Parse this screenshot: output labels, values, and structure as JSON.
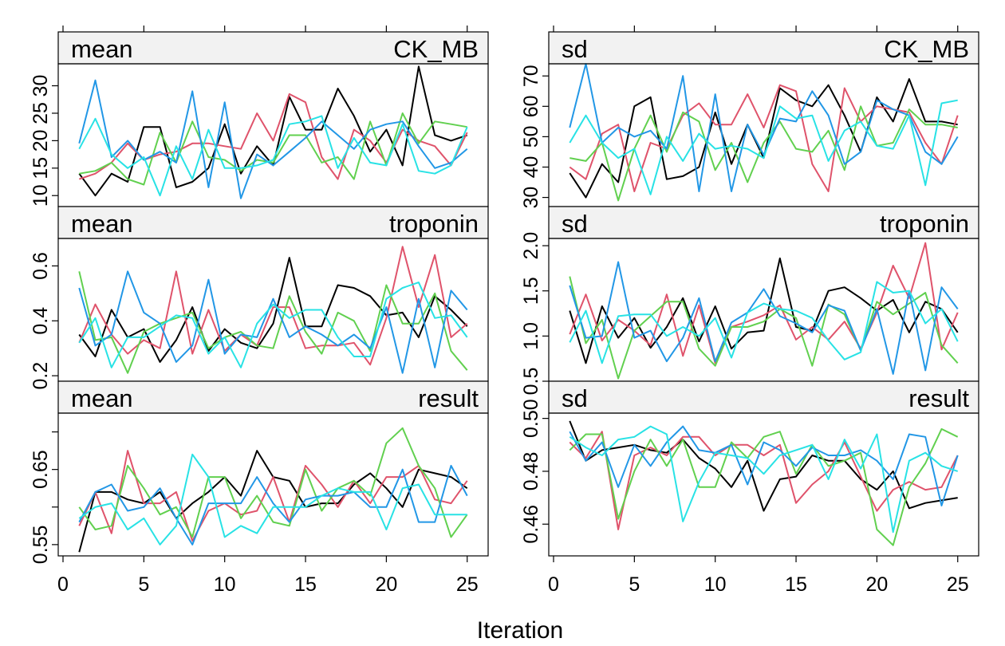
{
  "chart_data": {
    "type": "line",
    "xlabel": "Iteration",
    "x_ticks": [
      0,
      5,
      10,
      15,
      20,
      25
    ],
    "colors": [
      "#000000",
      "#DF536B",
      "#61D04F",
      "#2297E6",
      "#28E2E5"
    ],
    "panels": [
      {
        "stat": "mean",
        "variable": "CK_MB",
        "ylim": [
          8,
          34
        ],
        "y_ticks": [
          10,
          15,
          20,
          25,
          30
        ],
        "y_tick_labels": [
          "10",
          "15",
          "20",
          "25",
          "30"
        ],
        "series": [
          [
            14,
            10,
            14,
            12.5,
            22.5,
            22.5,
            11.5,
            12.5,
            15,
            23,
            14,
            19,
            15.5,
            28,
            22,
            22,
            29.5,
            24.5,
            18,
            22,
            15.5,
            33.5,
            21,
            20,
            21
          ],
          [
            13,
            14,
            16,
            19.5,
            16.5,
            17.5,
            18,
            19.5,
            19.5,
            19,
            18.5,
            25,
            20,
            28.5,
            27,
            17,
            13,
            22,
            20,
            16,
            22,
            20,
            19,
            15.5,
            21.5
          ],
          [
            14,
            14.5,
            16,
            13,
            12,
            21.5,
            16,
            23.5,
            17,
            16.5,
            14.5,
            16.5,
            16,
            21,
            21,
            16,
            17,
            13,
            23.5,
            15.5,
            25,
            19.5,
            23.5,
            23,
            22.5
          ],
          [
            19.5,
            31,
            17,
            20,
            16.5,
            18,
            16,
            29,
            11.5,
            27,
            9.5,
            17.5,
            15.5,
            18,
            20.5,
            23.5,
            21,
            18.5,
            22,
            23,
            23.5,
            19,
            15,
            16,
            18.5
          ],
          [
            18.5,
            24,
            17.5,
            15,
            17,
            10,
            19,
            13,
            22,
            15,
            15,
            15.5,
            16.5,
            23,
            23.5,
            24.5,
            15,
            20.5,
            16,
            15.5,
            23,
            14.5,
            14,
            15.5,
            22.5
          ]
        ]
      },
      {
        "stat": "sd",
        "variable": "CK_MB",
        "ylim": [
          27,
          74
        ],
        "y_ticks": [
          30,
          40,
          50,
          60,
          70
        ],
        "y_tick_labels": [
          "30",
          "40",
          "50",
          "60",
          "70"
        ],
        "series": [
          [
            38,
            30,
            41,
            35,
            60,
            63,
            36,
            37,
            40,
            58,
            41,
            54,
            43,
            66,
            62,
            60,
            67,
            57,
            45,
            63,
            55,
            69,
            55,
            55,
            54
          ],
          [
            40,
            36,
            51,
            54,
            32,
            48,
            46,
            57,
            61,
            54,
            54,
            64,
            53,
            67,
            65,
            41,
            32,
            66,
            55,
            60,
            59,
            58,
            48,
            41,
            57
          ],
          [
            43,
            42,
            48,
            29,
            46,
            57,
            45,
            58,
            55,
            39,
            48,
            35,
            48,
            55,
            46,
            45,
            52,
            39,
            60,
            47,
            48,
            59,
            54,
            54,
            53
          ],
          [
            53,
            74,
            48,
            53,
            50,
            52,
            46,
            70,
            32,
            64,
            32,
            54,
            44,
            56,
            55,
            65,
            57,
            41,
            45,
            62,
            59,
            57,
            45,
            41,
            50
          ],
          [
            48,
            57,
            48,
            43,
            46,
            31,
            50,
            42,
            51,
            46,
            47,
            46,
            43,
            60,
            56,
            57,
            42,
            52,
            55,
            47,
            46,
            57,
            34,
            61,
            62
          ]
        ]
      },
      {
        "stat": "mean",
        "variable": "troponin",
        "ylim": [
          0.18,
          0.7
        ],
        "y_ticks": [
          0.2,
          0.4,
          0.6
        ],
        "y_tick_labels": [
          "0.2",
          "0.4",
          "0.6"
        ],
        "series": [
          [
            0.35,
            0.27,
            0.44,
            0.34,
            0.37,
            0.25,
            0.33,
            0.45,
            0.29,
            0.37,
            0.32,
            0.3,
            0.39,
            0.63,
            0.38,
            0.38,
            0.53,
            0.52,
            0.49,
            0.42,
            0.43,
            0.34,
            0.49,
            0.44,
            0.38
          ],
          [
            0.32,
            0.46,
            0.35,
            0.28,
            0.33,
            0.3,
            0.58,
            0.28,
            0.44,
            0.29,
            0.35,
            0.31,
            0.45,
            0.45,
            0.3,
            0.31,
            0.31,
            0.32,
            0.24,
            0.41,
            0.67,
            0.45,
            0.64,
            0.34,
            0.39
          ],
          [
            0.58,
            0.33,
            0.34,
            0.21,
            0.36,
            0.39,
            0.41,
            0.43,
            0.3,
            0.34,
            0.36,
            0.31,
            0.3,
            0.49,
            0.36,
            0.28,
            0.43,
            0.4,
            0.29,
            0.53,
            0.39,
            0.39,
            0.5,
            0.29,
            0.22
          ],
          [
            0.52,
            0.31,
            0.35,
            0.58,
            0.43,
            0.39,
            0.25,
            0.31,
            0.55,
            0.28,
            0.35,
            0.34,
            0.48,
            0.34,
            0.38,
            0.35,
            0.31,
            0.35,
            0.3,
            0.45,
            0.21,
            0.48,
            0.23,
            0.51,
            0.44
          ],
          [
            0.32,
            0.41,
            0.23,
            0.34,
            0.34,
            0.38,
            0.42,
            0.41,
            0.28,
            0.34,
            0.23,
            0.39,
            0.46,
            0.41,
            0.44,
            0.44,
            0.34,
            0.27,
            0.27,
            0.48,
            0.52,
            0.54,
            0.41,
            0.42,
            0.34
          ]
        ]
      },
      {
        "stat": "sd",
        "variable": "troponin",
        "ylim": [
          0.5,
          2.08
        ],
        "y_ticks": [
          0.5,
          1.0,
          1.5,
          2.0
        ],
        "y_tick_labels": [
          "0.5",
          "1.0",
          "1.5",
          "2.0"
        ],
        "series": [
          [
            1.28,
            0.7,
            1.33,
            0.98,
            1.2,
            0.87,
            1.1,
            1.42,
            0.94,
            1.33,
            0.86,
            1.04,
            1.06,
            1.86,
            1.1,
            1.06,
            1.5,
            1.54,
            1.42,
            1.28,
            1.4,
            1.04,
            1.38,
            1.3,
            1.04
          ],
          [
            1.02,
            1.46,
            0.95,
            1.18,
            1.06,
            0.9,
            1.46,
            0.78,
            1.34,
            0.7,
            1.1,
            1.16,
            1.23,
            1.34,
            0.96,
            1.1,
            0.96,
            1.16,
            0.86,
            1.26,
            1.78,
            1.42,
            2.03,
            0.85,
            1.26
          ],
          [
            1.66,
            0.92,
            1.18,
            0.53,
            1.06,
            1.22,
            1.38,
            1.38,
            0.86,
            0.67,
            1.1,
            1.1,
            1.16,
            1.3,
            1.2,
            0.67,
            1.35,
            1.24,
            0.84,
            1.38,
            1.24,
            1.36,
            1.48,
            0.9,
            0.7
          ],
          [
            1.56,
            0.98,
            1.0,
            1.82,
            0.98,
            1.06,
            0.72,
            0.98,
            1.42,
            0.72,
            1.15,
            1.26,
            1.52,
            1.22,
            1.14,
            1.04,
            1.34,
            1.28,
            0.84,
            1.3,
            0.58,
            1.5,
            0.62,
            1.54,
            1.3
          ],
          [
            0.93,
            1.28,
            0.7,
            1.22,
            1.24,
            1.24,
            1.0,
            1.1,
            1.0,
            1.2,
            0.76,
            1.26,
            1.36,
            1.3,
            1.28,
            1.2,
            0.95,
            0.74,
            0.82,
            1.6,
            1.48,
            1.5,
            1.14,
            1.3,
            0.94
          ]
        ]
      },
      {
        "stat": "mean",
        "variable": "result",
        "ylim": [
          0.535,
          0.725
        ],
        "y_ticks": [
          0.55,
          0.6,
          0.65,
          0.7
        ],
        "y_tick_labels": [
          "0.55",
          "",
          "0.65",
          ""
        ],
        "series": [
          [
            0.54,
            0.62,
            0.62,
            0.61,
            0.605,
            0.62,
            0.585,
            0.605,
            0.62,
            0.64,
            0.615,
            0.675,
            0.64,
            0.635,
            0.6,
            0.605,
            0.605,
            0.63,
            0.645,
            0.625,
            0.6,
            0.65,
            0.645,
            0.64,
            0.625
          ],
          [
            0.575,
            0.62,
            0.565,
            0.675,
            0.605,
            0.605,
            0.62,
            0.555,
            0.595,
            0.605,
            0.59,
            0.595,
            0.64,
            0.58,
            0.655,
            0.63,
            0.6,
            0.635,
            0.605,
            0.64,
            0.64,
            0.655,
            0.61,
            0.605,
            0.635
          ],
          [
            0.6,
            0.57,
            0.575,
            0.655,
            0.625,
            0.59,
            0.6,
            0.56,
            0.64,
            0.64,
            0.585,
            0.615,
            0.58,
            0.575,
            0.65,
            0.595,
            0.625,
            0.635,
            0.615,
            0.685,
            0.705,
            0.655,
            0.625,
            0.56,
            0.59
          ],
          [
            0.58,
            0.62,
            0.63,
            0.595,
            0.6,
            0.625,
            0.585,
            0.55,
            0.605,
            0.605,
            0.605,
            0.64,
            0.605,
            0.58,
            0.61,
            0.615,
            0.615,
            0.62,
            0.6,
            0.6,
            0.65,
            0.58,
            0.58,
            0.655,
            0.615
          ],
          [
            0.585,
            0.6,
            0.605,
            0.57,
            0.585,
            0.55,
            0.575,
            0.67,
            0.64,
            0.56,
            0.575,
            0.565,
            0.6,
            0.6,
            0.6,
            0.615,
            0.625,
            0.62,
            0.62,
            0.57,
            0.625,
            0.63,
            0.59,
            0.59,
            0.59
          ]
        ]
      },
      {
        "stat": "sd",
        "variable": "result",
        "ylim": [
          0.448,
          0.502
        ],
        "y_ticks": [
          0.46,
          0.48,
          0.5
        ],
        "y_tick_labels": [
          "0.46",
          "0.48",
          "0.50"
        ],
        "series": [
          [
            0.499,
            0.484,
            0.488,
            0.489,
            0.49,
            0.488,
            0.487,
            0.492,
            0.485,
            0.481,
            0.474,
            0.484,
            0.465,
            0.477,
            0.478,
            0.486,
            0.484,
            0.484,
            0.477,
            0.473,
            0.48,
            0.466,
            0.468,
            0.469,
            0.47
          ],
          [
            0.491,
            0.485,
            0.495,
            0.458,
            0.486,
            0.489,
            0.486,
            0.493,
            0.493,
            0.486,
            0.49,
            0.49,
            0.486,
            0.49,
            0.468,
            0.475,
            0.48,
            0.491,
            0.478,
            0.465,
            0.473,
            0.476,
            0.473,
            0.474,
            0.486
          ],
          [
            0.488,
            0.494,
            0.494,
            0.462,
            0.48,
            0.492,
            0.482,
            0.492,
            0.474,
            0.474,
            0.491,
            0.485,
            0.493,
            0.495,
            0.479,
            0.49,
            0.482,
            0.484,
            0.487,
            0.458,
            0.452,
            0.474,
            0.483,
            0.496,
            0.493
          ],
          [
            0.495,
            0.484,
            0.491,
            0.474,
            0.49,
            0.482,
            0.491,
            0.497,
            0.488,
            0.487,
            0.49,
            0.475,
            0.491,
            0.488,
            0.482,
            0.489,
            0.486,
            0.486,
            0.488,
            0.484,
            0.477,
            0.494,
            0.493,
            0.467,
            0.486
          ],
          [
            0.493,
            0.489,
            0.486,
            0.492,
            0.493,
            0.497,
            0.494,
            0.461,
            0.476,
            0.487,
            0.486,
            0.485,
            0.479,
            0.486,
            0.488,
            0.49,
            0.477,
            0.492,
            0.481,
            0.494,
            0.457,
            0.484,
            0.487,
            0.482,
            0.48
          ]
        ]
      }
    ]
  }
}
